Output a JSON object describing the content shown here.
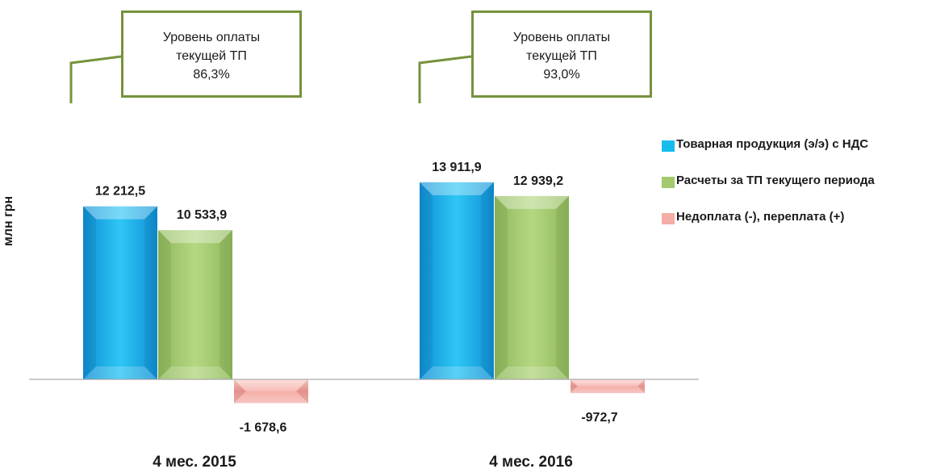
{
  "chart_data": {
    "type": "bar",
    "categories": [
      "4 мес.  2015",
      "4 мес.  2016"
    ],
    "series": [
      {
        "name": "Товарная продукция (э/э) с НДС",
        "values": [
          12212.5,
          13911.9
        ],
        "labels": [
          "12 212,5",
          "13 911,9"
        ],
        "color": "#17bcef"
      },
      {
        "name": "Расчеты за  ТП текущего периода",
        "values": [
          10533.9,
          12939.2
        ],
        "labels": [
          "10 533,9",
          "12 939,2"
        ],
        "color": "#a3c96c"
      },
      {
        "name": "Недоплата (-), переплата (+)",
        "values": [
          -1678.6,
          -972.7
        ],
        "labels": [
          "-1 678,6",
          "-972,7"
        ],
        "color": "#f6aca7"
      }
    ],
    "ylabel": "млн грн",
    "ylim": [
      -2500,
      16000
    ],
    "grid": false,
    "legend": "right",
    "annotations": [
      {
        "category": "4 мес.  2015",
        "lines": [
          "Уровень оплаты",
          "текущей ТП",
          "86,3%"
        ]
      },
      {
        "category": "4 мес.  2016",
        "lines": [
          "Уровень оплаты",
          "текущей ТП",
          "93,0%"
        ]
      }
    ]
  }
}
